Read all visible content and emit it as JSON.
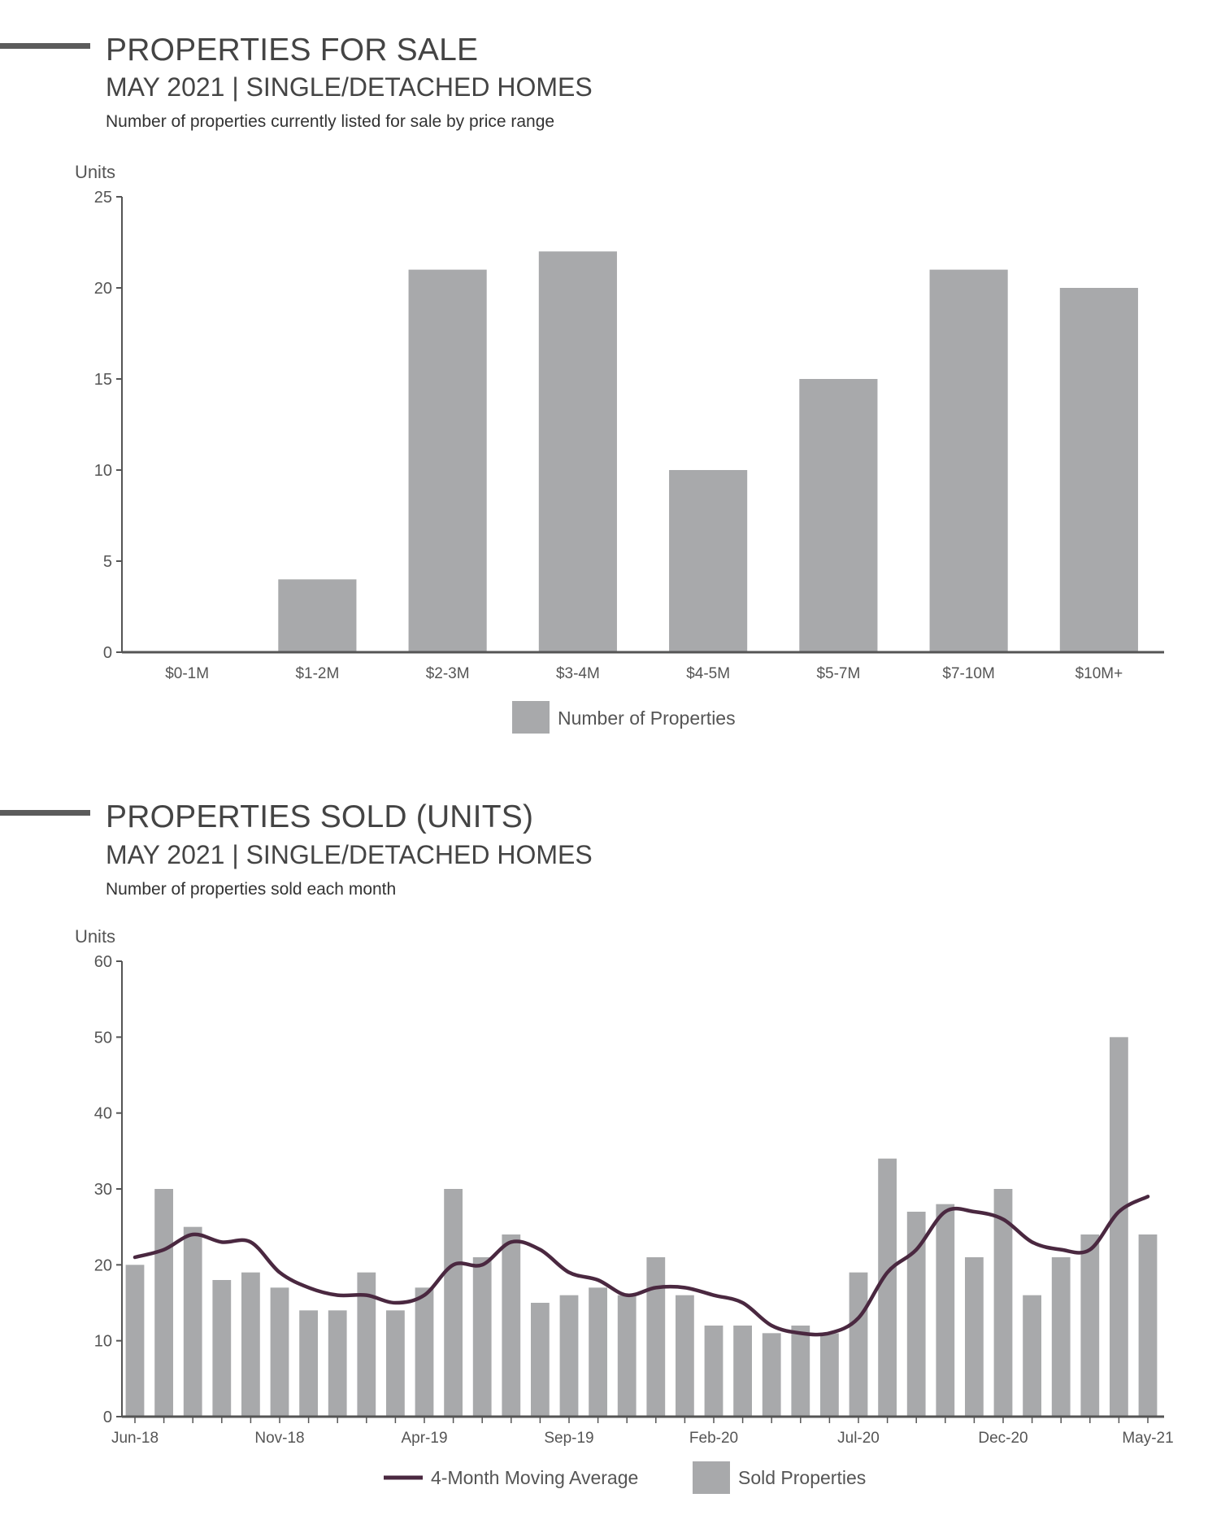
{
  "sections": [
    {
      "title": "PROPERTIES FOR SALE",
      "subtitle": "MAY 2021 | SINGLE/DETACHED HOMES",
      "description": "Number of properties currently listed for sale by price range"
    },
    {
      "title": "PROPERTIES SOLD (UNITS)",
      "subtitle": "MAY 2021 | SINGLE/DETACHED HOMES",
      "description": "Number of properties sold each month"
    }
  ],
  "chart_data": [
    {
      "type": "bar",
      "ylabel": "Units",
      "ylim": [
        0,
        25
      ],
      "yticks": [
        0,
        5,
        10,
        15,
        20,
        25
      ],
      "categories": [
        "$0-1M",
        "$1-2M",
        "$2-3M",
        "$3-4M",
        "$4-5M",
        "$5-7M",
        "$7-10M",
        "$10M+"
      ],
      "series": [
        {
          "name": "Number of Properties",
          "values": [
            0,
            4,
            21,
            22,
            10,
            15,
            21,
            20
          ]
        }
      ],
      "legend": "bottom-center",
      "grid": false,
      "colors": {
        "bar": "#a8a9ab",
        "axis": "#555555"
      }
    },
    {
      "type": "bar",
      "ylabel": "Units",
      "ylim": [
        0,
        60
      ],
      "yticks": [
        0,
        10,
        20,
        30,
        40,
        50,
        60
      ],
      "x_tick_labels": [
        "Jun-18",
        "Nov-18",
        "Apr-19",
        "Sep-19",
        "Feb-20",
        "Jul-20",
        "Dec-20",
        "May-21"
      ],
      "x_tick_every": 5,
      "series": [
        {
          "name": "Sold Properties",
          "type": "bar",
          "values": [
            20,
            30,
            25,
            18,
            19,
            17,
            14,
            14,
            19,
            14,
            17,
            30,
            21,
            24,
            15,
            16,
            17,
            16,
            21,
            16,
            12,
            12,
            11,
            12,
            11,
            19,
            34,
            27,
            28,
            21,
            30,
            16,
            21,
            24,
            50,
            24
          ]
        },
        {
          "name": "4-Month Moving Average",
          "type": "line",
          "values": [
            21,
            22,
            24,
            23,
            23,
            19,
            17,
            16,
            16,
            15,
            16,
            20,
            20,
            23,
            22,
            19,
            18,
            16,
            17,
            17,
            16,
            15,
            12,
            11,
            11,
            13,
            19,
            22,
            27,
            27,
            26,
            23,
            22,
            22,
            27,
            29
          ]
        }
      ],
      "legend": "bottom-center",
      "grid": false,
      "colors": {
        "bar": "#a8a9ab",
        "line": "#4a2840",
        "axis": "#555555"
      }
    }
  ]
}
